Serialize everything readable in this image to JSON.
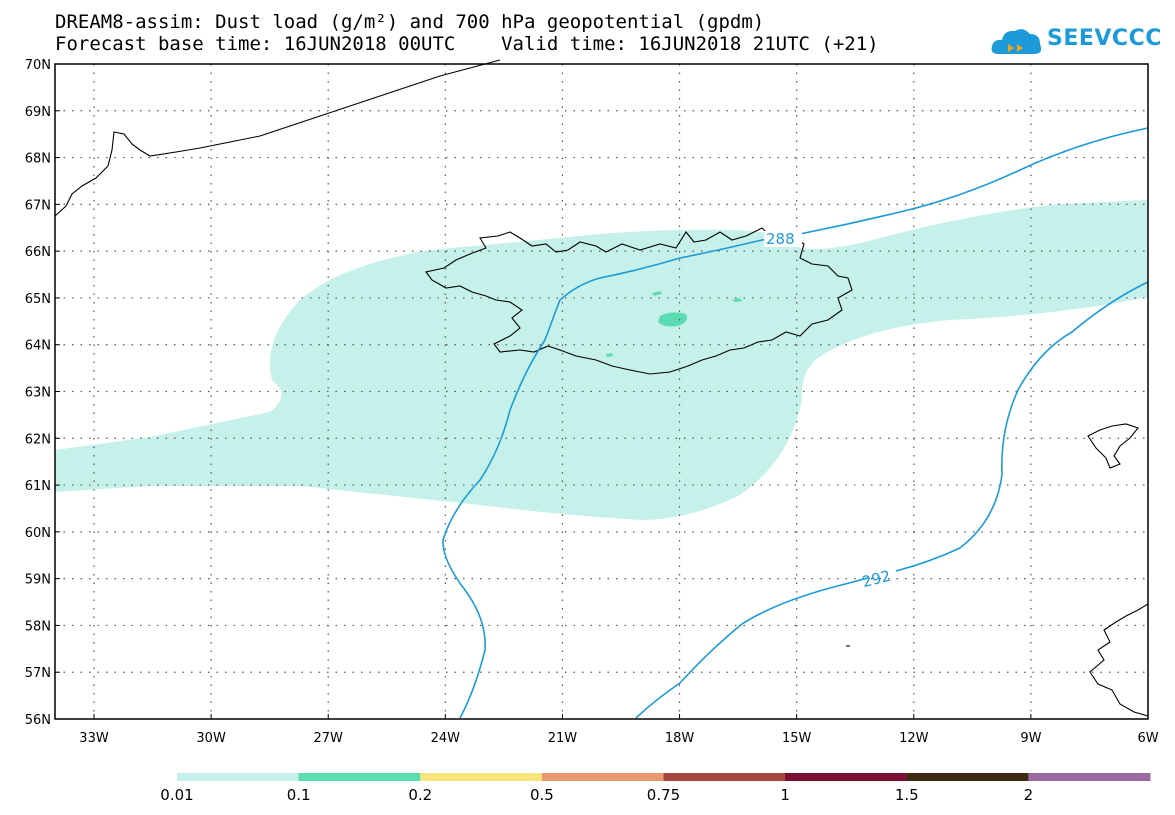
{
  "title_line1": "DREAM8-assim: Dust load (g/m²) and 700 hPa geopotential (gpdm)",
  "title_line2": "Forecast base time: 16JUN2018 00UTC    Valid time: 16JUN2018 21UTC (+21)",
  "logo_text": "SEEVCCC",
  "lat_labels": [
    "70N",
    "69N",
    "68N",
    "67N",
    "66N",
    "65N",
    "64N",
    "63N",
    "62N",
    "61N",
    "60N",
    "59N",
    "58N",
    "57N",
    "56N"
  ],
  "lon_labels": [
    "33W",
    "30W",
    "27W",
    "24W",
    "21W",
    "18W",
    "15W",
    "12W",
    "9W",
    "6W"
  ],
  "contour_labels": [
    "288",
    "292"
  ],
  "colorbar": {
    "labels": [
      "0.01",
      "0.1",
      "0.2",
      "0.5",
      "0.75",
      "1",
      "1.5",
      "2"
    ],
    "colors": [
      "#c6f0ea",
      "#5cdcb3",
      "#f5e57a",
      "#e89a6e",
      "#a8473f",
      "#7d0f31",
      "#3d2a12",
      "#9a6aa1"
    ]
  },
  "colors": {
    "contour": "#1c9bd8",
    "dust_low": "#c6f0ea",
    "dust_mid": "#5cdcb3"
  }
}
